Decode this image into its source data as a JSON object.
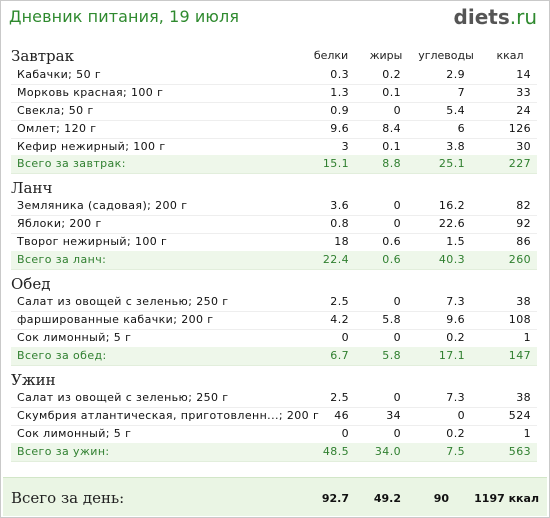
{
  "header": {
    "title": "Дневник питания, 19 июля",
    "logo_main": "diets",
    "logo_tld": ".ru"
  },
  "columns": [
    "белки",
    "жиры",
    "углеводы",
    "ккал"
  ],
  "meals": [
    {
      "name": "Завтрак",
      "items": [
        {
          "name": "Кабачки; 50 г",
          "protein": "0.3",
          "fat": "0.2",
          "carbs": "2.9",
          "kcal": "14"
        },
        {
          "name": "Морковь красная; 100 г",
          "protein": "1.3",
          "fat": "0.1",
          "carbs": "7",
          "kcal": "33"
        },
        {
          "name": "Свекла; 50 г",
          "protein": "0.9",
          "fat": "0",
          "carbs": "5.4",
          "kcal": "24"
        },
        {
          "name": "Омлет; 120 г",
          "protein": "9.6",
          "fat": "8.4",
          "carbs": "6",
          "kcal": "126"
        },
        {
          "name": "Кефир нежирный; 100 г",
          "protein": "3",
          "fat": "0.1",
          "carbs": "3.8",
          "kcal": "30"
        }
      ],
      "total": {
        "label": "Всего за завтрак:",
        "protein": "15.1",
        "fat": "8.8",
        "carbs": "25.1",
        "kcal": "227"
      }
    },
    {
      "name": "Ланч",
      "items": [
        {
          "name": "Земляника (садовая); 200 г",
          "protein": "3.6",
          "fat": "0",
          "carbs": "16.2",
          "kcal": "82"
        },
        {
          "name": "Яблоки; 200 г",
          "protein": "0.8",
          "fat": "0",
          "carbs": "22.6",
          "kcal": "92"
        },
        {
          "name": "Творог нежирный; 100 г",
          "protein": "18",
          "fat": "0.6",
          "carbs": "1.5",
          "kcal": "86"
        }
      ],
      "total": {
        "label": "Всего за ланч:",
        "protein": "22.4",
        "fat": "0.6",
        "carbs": "40.3",
        "kcal": "260"
      }
    },
    {
      "name": "Обед",
      "items": [
        {
          "name": "Салат из овощей с зеленью; 250 г",
          "protein": "2.5",
          "fat": "0",
          "carbs": "7.3",
          "kcal": "38"
        },
        {
          "name": "фаршированные кабачки; 200 г",
          "protein": "4.2",
          "fat": "5.8",
          "carbs": "9.6",
          "kcal": "108"
        },
        {
          "name": "Сок лимонный; 5 г",
          "protein": "0",
          "fat": "0",
          "carbs": "0.2",
          "kcal": "1"
        }
      ],
      "total": {
        "label": "Всего за обед:",
        "protein": "6.7",
        "fat": "5.8",
        "carbs": "17.1",
        "kcal": "147"
      }
    },
    {
      "name": "Ужин",
      "items": [
        {
          "name": "Салат из овощей с зеленью; 250 г",
          "protein": "2.5",
          "fat": "0",
          "carbs": "7.3",
          "kcal": "38"
        },
        {
          "name": "Скумбрия атлантическая, приготовленн...; 200 г",
          "protein": "46",
          "fat": "34",
          "carbs": "0",
          "kcal": "524"
        },
        {
          "name": "Сок лимонный; 5 г",
          "protein": "0",
          "fat": "0",
          "carbs": "0.2",
          "kcal": "1"
        }
      ],
      "total": {
        "label": "Всего за ужин:",
        "protein": "48.5",
        "fat": "34.0",
        "carbs": "7.5",
        "kcal": "563"
      }
    }
  ],
  "day_total": {
    "label": "Всего за день:",
    "protein": "92.7",
    "fat": "49.2",
    "carbs": "90",
    "kcal": "1197 ккал"
  },
  "colors": {
    "accent": "#2f8a2f",
    "total_row_bg": "#eef7ea",
    "day_total_bg": "#eaf5e4"
  }
}
